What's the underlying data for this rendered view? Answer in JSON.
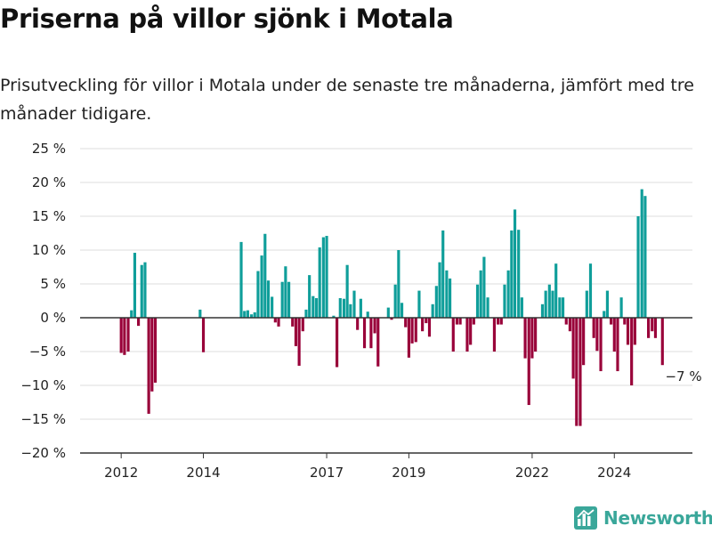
{
  "title": "Priserna på villor sjönk i Motala",
  "subtitle": "Prisutveckling för villor i Motala under de senaste tre månaderna, jämfört med tre månader tidigare.",
  "brand": {
    "name": "Newsworthy",
    "logo_icon": "newsworthy-logo-icon"
  },
  "colors": {
    "positive": "#0f9e9a",
    "negative": "#990039",
    "grid": "#dddddd",
    "baseline": "#333333"
  },
  "chart_data": {
    "type": "bar",
    "title": "Priserna på villor sjönk i Motala",
    "subtitle": "Prisutveckling för villor i Motala under de senaste tre månaderna, jämfört med tre månader tidigare.",
    "xlim": [
      2011.0,
      2025.9
    ],
    "ylim": [
      -20,
      25
    ],
    "y_ticks": [
      25,
      20,
      15,
      10,
      5,
      0,
      -5,
      -10,
      -15,
      -20
    ],
    "y_tick_labels": [
      "25 %",
      "20 %",
      "15 %",
      "10 %",
      "5 %",
      "0 %",
      "−5 %",
      "−10 %",
      "−15 %",
      "−20 %"
    ],
    "x_ticks": [
      2012,
      2014,
      2017,
      2019,
      2022,
      2024
    ],
    "x_tick_labels": [
      "2012",
      "2014",
      "2017",
      "2019",
      "2022",
      "2024"
    ],
    "grid": true,
    "annotation": "−7 %",
    "annotation_x": 2025.0,
    "values": [
      [
        2012.0,
        -5.2
      ],
      [
        2012.08,
        -5.5
      ],
      [
        2012.17,
        -5.0
      ],
      [
        2012.25,
        1.1
      ],
      [
        2012.33,
        9.6
      ],
      [
        2012.42,
        -1.2
      ],
      [
        2012.5,
        7.8
      ],
      [
        2012.58,
        8.2
      ],
      [
        2012.67,
        -14.2
      ],
      [
        2012.75,
        -10.9
      ],
      [
        2012.83,
        -9.6
      ],
      [
        2013.92,
        1.2
      ],
      [
        2014.0,
        -5.1
      ],
      [
        2014.92,
        11.2
      ],
      [
        2015.0,
        1.0
      ],
      [
        2015.08,
        1.1
      ],
      [
        2015.17,
        0.5
      ],
      [
        2015.25,
        0.8
      ],
      [
        2015.33,
        6.9
      ],
      [
        2015.42,
        9.2
      ],
      [
        2015.5,
        12.4
      ],
      [
        2015.58,
        5.5
      ],
      [
        2015.67,
        3.1
      ],
      [
        2015.75,
        -0.7
      ],
      [
        2015.83,
        -1.3
      ],
      [
        2015.92,
        5.3
      ],
      [
        2016.0,
        7.6
      ],
      [
        2016.08,
        5.3
      ],
      [
        2016.17,
        -1.3
      ],
      [
        2016.25,
        -4.2
      ],
      [
        2016.33,
        -7.1
      ],
      [
        2016.42,
        -2.0
      ],
      [
        2016.5,
        1.2
      ],
      [
        2016.58,
        6.3
      ],
      [
        2016.67,
        3.2
      ],
      [
        2016.75,
        2.9
      ],
      [
        2016.83,
        10.4
      ],
      [
        2016.92,
        11.9
      ],
      [
        2017.0,
        12.1
      ],
      [
        2017.17,
        0.3
      ],
      [
        2017.25,
        -7.3
      ],
      [
        2017.33,
        2.9
      ],
      [
        2017.42,
        2.8
      ],
      [
        2017.5,
        7.8
      ],
      [
        2017.58,
        2.0
      ],
      [
        2017.67,
        4.0
      ],
      [
        2017.75,
        -1.8
      ],
      [
        2017.83,
        2.8
      ],
      [
        2017.92,
        -4.5
      ],
      [
        2018.0,
        0.9
      ],
      [
        2018.08,
        -4.5
      ],
      [
        2018.17,
        -2.3
      ],
      [
        2018.25,
        -7.2
      ],
      [
        2018.5,
        1.5
      ],
      [
        2018.58,
        -0.3
      ],
      [
        2018.67,
        4.9
      ],
      [
        2018.75,
        10.0
      ],
      [
        2018.83,
        2.2
      ],
      [
        2018.92,
        -1.4
      ],
      [
        2019.0,
        -5.9
      ],
      [
        2019.08,
        -3.8
      ],
      [
        2019.17,
        -3.6
      ],
      [
        2019.25,
        4.0
      ],
      [
        2019.33,
        -2.0
      ],
      [
        2019.42,
        -0.8
      ],
      [
        2019.5,
        -2.8
      ],
      [
        2019.58,
        2.0
      ],
      [
        2019.67,
        4.7
      ],
      [
        2019.75,
        8.2
      ],
      [
        2019.83,
        12.9
      ],
      [
        2019.92,
        7.0
      ],
      [
        2020.0,
        5.8
      ],
      [
        2020.08,
        -5.0
      ],
      [
        2020.17,
        -1.0
      ],
      [
        2020.25,
        -1.0
      ],
      [
        2020.42,
        -5.0
      ],
      [
        2020.5,
        -4.0
      ],
      [
        2020.58,
        -1.0
      ],
      [
        2020.67,
        4.9
      ],
      [
        2020.75,
        7.0
      ],
      [
        2020.83,
        9.0
      ],
      [
        2020.92,
        3.0
      ],
      [
        2021.08,
        -5.0
      ],
      [
        2021.17,
        -1.0
      ],
      [
        2021.25,
        -1.0
      ],
      [
        2021.33,
        4.9
      ],
      [
        2021.42,
        7.0
      ],
      [
        2021.5,
        12.9
      ],
      [
        2021.58,
        16.0
      ],
      [
        2021.67,
        13.0
      ],
      [
        2021.75,
        3.0
      ],
      [
        2021.83,
        -6.0
      ],
      [
        2021.92,
        -12.9
      ],
      [
        2022.0,
        -6.0
      ],
      [
        2022.08,
        -5.0
      ],
      [
        2022.25,
        2.0
      ],
      [
        2022.33,
        4.0
      ],
      [
        2022.42,
        4.9
      ],
      [
        2022.5,
        4.0
      ],
      [
        2022.58,
        8.0
      ],
      [
        2022.67,
        3.0
      ],
      [
        2022.75,
        3.0
      ],
      [
        2022.83,
        -1.0
      ],
      [
        2022.92,
        -2.0
      ],
      [
        2023.0,
        -9.0
      ],
      [
        2023.08,
        -16.0
      ],
      [
        2023.17,
        -16.0
      ],
      [
        2023.25,
        -7.0
      ],
      [
        2023.33,
        4.0
      ],
      [
        2023.42,
        8.0
      ],
      [
        2023.5,
        -3.0
      ],
      [
        2023.58,
        -4.9
      ],
      [
        2023.67,
        -7.9
      ],
      [
        2023.75,
        1.0
      ],
      [
        2023.83,
        4.0
      ],
      [
        2023.92,
        -1.0
      ],
      [
        2024.0,
        -5.0
      ],
      [
        2024.08,
        -7.9
      ],
      [
        2024.17,
        3.0
      ],
      [
        2024.25,
        -1.0
      ],
      [
        2024.33,
        -4.0
      ],
      [
        2024.42,
        -10.0
      ],
      [
        2024.5,
        -4.0
      ],
      [
        2024.58,
        15.0
      ],
      [
        2024.67,
        19.0
      ],
      [
        2024.75,
        18.0
      ],
      [
        2024.83,
        -3.0
      ],
      [
        2024.92,
        -2.0
      ],
      [
        2025.0,
        -3.0
      ],
      [
        2025.17,
        -7.0
      ]
    ]
  }
}
